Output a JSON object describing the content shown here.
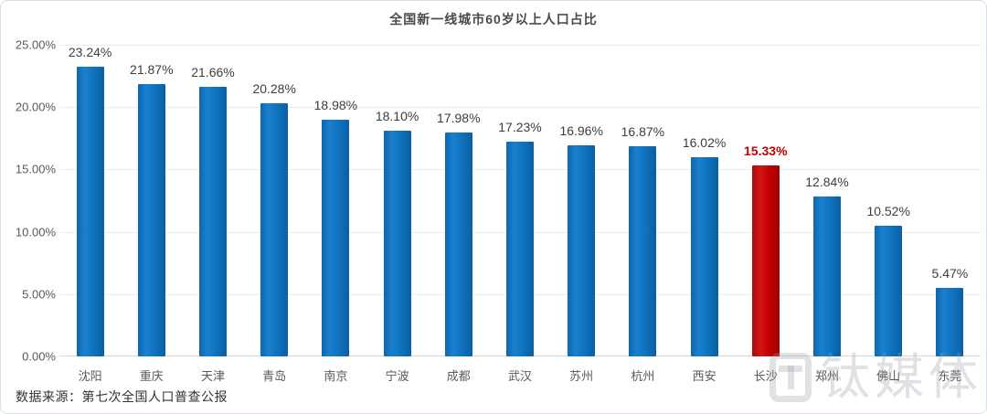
{
  "chart_data": {
    "type": "bar",
    "title": "全国新一线城市60岁以上人口占比",
    "categories": [
      "沈阳",
      "重庆",
      "天津",
      "青岛",
      "南京",
      "宁波",
      "成都",
      "武汉",
      "苏州",
      "杭州",
      "西安",
      "长沙",
      "郑州",
      "佛山",
      "东莞"
    ],
    "values": [
      23.24,
      21.87,
      21.66,
      20.28,
      18.98,
      18.1,
      17.98,
      17.23,
      16.96,
      16.87,
      16.02,
      15.33,
      12.84,
      10.52,
      5.47
    ],
    "value_labels": [
      "23.24%",
      "21.87%",
      "21.66%",
      "20.28%",
      "18.98%",
      "18.10%",
      "17.98%",
      "17.23%",
      "16.96%",
      "16.87%",
      "16.02%",
      "15.33%",
      "12.84%",
      "10.52%",
      "5.47%"
    ],
    "highlight_index": 11,
    "highlight_city": "长沙",
    "bar_color": "#0f72bd",
    "highlight_color": "#c00000",
    "xlabel": "",
    "ylabel": "",
    "ylim": [
      0,
      25
    ],
    "y_ticks": [
      "0.00%",
      "5.00%",
      "10.00%",
      "15.00%",
      "20.00%",
      "25.00%"
    ],
    "grid": true,
    "legend_position": "none"
  },
  "footer": {
    "source_label": "数据来源：第七次全国人口普查公报"
  },
  "watermark": {
    "text": "钛媒体"
  }
}
